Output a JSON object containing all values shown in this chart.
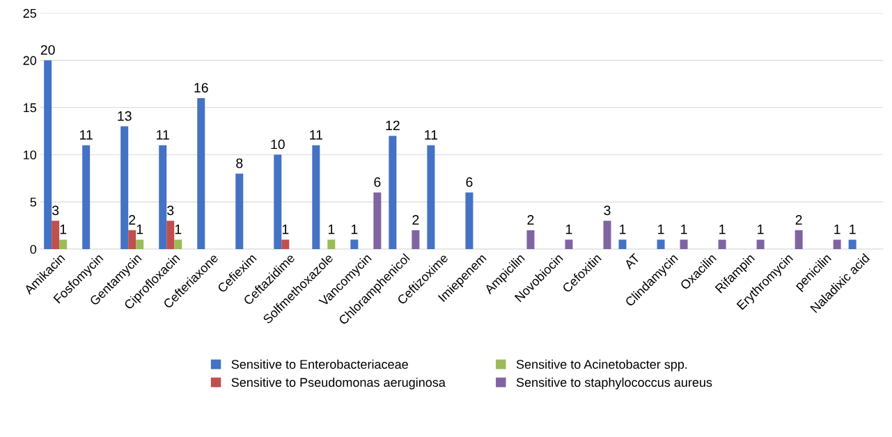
{
  "chart_data": {
    "type": "bar",
    "categories": [
      "Amikacin",
      "Fosfomycin",
      "Gentamycin",
      "Ciprofloxacin",
      "Cefteriaxone",
      "Cefiexim",
      "Ceftazidime",
      "Solfmethoxazole",
      "Vancomycin",
      "Chloramphenicol",
      "Ceftizoxime",
      "Imiepenem",
      "Ampicilin",
      "Novobiocin",
      "Cefoxitin",
      "AT",
      "Clindamycin",
      "Oxacilin",
      "Rifampin",
      "Erythromycin",
      "penicilin",
      "Naladixic acid"
    ],
    "series": [
      {
        "name": "Sensitive to Enterobacteriaceae",
        "color": "#4472c4",
        "values": [
          20,
          11,
          13,
          11,
          16,
          8,
          10,
          11,
          1,
          12,
          11,
          6,
          null,
          null,
          null,
          1,
          1,
          null,
          null,
          null,
          null,
          1
        ]
      },
      {
        "name": "Sensitive to Pseudomonas aeruginosa",
        "color": "#c0504d",
        "values": [
          3,
          null,
          2,
          3,
          null,
          null,
          1,
          null,
          null,
          null,
          null,
          null,
          null,
          null,
          null,
          null,
          null,
          null,
          null,
          null,
          null,
          null
        ]
      },
      {
        "name": "Sensitive to Acinetobacter spp.",
        "color": "#9bbb59",
        "values": [
          1,
          null,
          1,
          1,
          null,
          null,
          null,
          1,
          null,
          null,
          null,
          null,
          null,
          null,
          null,
          null,
          null,
          null,
          null,
          null,
          null,
          null
        ]
      },
      {
        "name": "Sensitive to staphylococcus aureus",
        "color": "#8064a2",
        "values": [
          null,
          null,
          null,
          null,
          null,
          null,
          null,
          null,
          6,
          2,
          null,
          null,
          2,
          1,
          3,
          null,
          1,
          1,
          1,
          2,
          1,
          null
        ]
      }
    ],
    "ylim": [
      0,
      25
    ],
    "yticks": [
      0,
      5,
      10,
      15,
      20,
      25
    ],
    "grid": "y",
    "legend": "bottom",
    "data_labels": true
  }
}
